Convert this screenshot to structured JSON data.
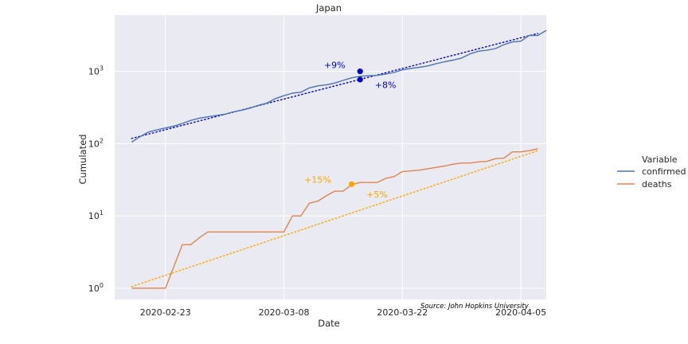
{
  "chart_data": {
    "type": "line",
    "title": "Japan",
    "xlabel": "Date",
    "ylabel": "Cumulated",
    "yscale": "log",
    "ylim": [
      0.7,
      6000
    ],
    "xlim": [
      "2020-02-17",
      "2020-04-08"
    ],
    "x_ticks": [
      "2020-02-23",
      "2020-03-08",
      "2020-03-22",
      "2020-04-05"
    ],
    "y_ticks": [
      {
        "value": 1,
        "base": "10",
        "exp": "0"
      },
      {
        "value": 10,
        "base": "10",
        "exp": "1"
      },
      {
        "value": 100,
        "base": "10",
        "exp": "2"
      },
      {
        "value": 1000,
        "base": "10",
        "exp": "3"
      }
    ],
    "grid": true,
    "source": "Source: John Hopkins University",
    "legend": {
      "title": "Variable",
      "position": "right",
      "entries": [
        {
          "label": "confirmed",
          "color": "#4c72b0"
        },
        {
          "label": "deaths",
          "color": "#dd8452"
        }
      ]
    },
    "series": [
      {
        "name": "confirmed",
        "color": "#4c72b0",
        "points": [
          [
            "2020-02-19",
            105
          ],
          [
            "2020-02-20",
            125
          ],
          [
            "2020-02-21",
            145
          ],
          [
            "2020-02-22",
            155
          ],
          [
            "2020-02-23",
            165
          ],
          [
            "2020-02-24",
            175
          ],
          [
            "2020-02-25",
            190
          ],
          [
            "2020-02-26",
            210
          ],
          [
            "2020-02-27",
            225
          ],
          [
            "2020-02-28",
            235
          ],
          [
            "2020-02-29",
            245
          ],
          [
            "2020-03-01",
            255
          ],
          [
            "2020-03-02",
            275
          ],
          [
            "2020-03-03",
            290
          ],
          [
            "2020-03-04",
            310
          ],
          [
            "2020-03-05",
            340
          ],
          [
            "2020-03-06",
            365
          ],
          [
            "2020-03-07",
            420
          ],
          [
            "2020-03-08",
            460
          ],
          [
            "2020-03-09",
            500
          ],
          [
            "2020-03-10",
            515
          ],
          [
            "2020-03-11",
            590
          ],
          [
            "2020-03-12",
            630
          ],
          [
            "2020-03-13",
            650
          ],
          [
            "2020-03-14",
            690
          ],
          [
            "2020-03-15",
            750
          ],
          [
            "2020-03-16",
            815
          ],
          [
            "2020-03-17",
            855
          ],
          [
            "2020-03-18",
            870
          ],
          [
            "2020-03-19",
            880
          ],
          [
            "2020-03-20",
            915
          ],
          [
            "2020-03-21",
            965
          ],
          [
            "2020-03-22",
            1050
          ],
          [
            "2020-03-23",
            1100
          ],
          [
            "2020-03-24",
            1140
          ],
          [
            "2020-03-25",
            1190
          ],
          [
            "2020-03-26",
            1280
          ],
          [
            "2020-03-27",
            1360
          ],
          [
            "2020-03-28",
            1430
          ],
          [
            "2020-03-29",
            1530
          ],
          [
            "2020-03-30",
            1750
          ],
          [
            "2020-03-31",
            1900
          ],
          [
            "2020-04-01",
            1960
          ],
          [
            "2020-04-02",
            2070
          ],
          [
            "2020-04-03",
            2350
          ],
          [
            "2020-04-04",
            2550
          ],
          [
            "2020-04-05",
            2620
          ],
          [
            "2020-04-06",
            3150
          ],
          [
            "2020-04-07",
            3140
          ],
          [
            "2020-04-08",
            3700
          ]
        ]
      },
      {
        "name": "deaths",
        "color": "#dd8452",
        "points": [
          [
            "2020-02-19",
            1
          ],
          [
            "2020-02-20",
            1
          ],
          [
            "2020-02-21",
            1
          ],
          [
            "2020-02-22",
            1
          ],
          [
            "2020-02-23",
            1
          ],
          [
            "2020-02-24",
            2
          ],
          [
            "2020-02-25",
            4
          ],
          [
            "2020-02-26",
            4
          ],
          [
            "2020-02-27",
            5
          ],
          [
            "2020-02-28",
            6
          ],
          [
            "2020-02-29",
            6
          ],
          [
            "2020-03-01",
            6
          ],
          [
            "2020-03-02",
            6
          ],
          [
            "2020-03-03",
            6
          ],
          [
            "2020-03-04",
            6
          ],
          [
            "2020-03-05",
            6
          ],
          [
            "2020-03-06",
            6
          ],
          [
            "2020-03-07",
            6
          ],
          [
            "2020-03-08",
            6
          ],
          [
            "2020-03-09",
            10
          ],
          [
            "2020-03-10",
            10
          ],
          [
            "2020-03-11",
            15
          ],
          [
            "2020-03-12",
            16
          ],
          [
            "2020-03-13",
            19
          ],
          [
            "2020-03-14",
            22
          ],
          [
            "2020-03-15",
            22
          ],
          [
            "2020-03-16",
            27
          ],
          [
            "2020-03-17",
            29
          ],
          [
            "2020-03-18",
            29
          ],
          [
            "2020-03-19",
            29
          ],
          [
            "2020-03-20",
            33
          ],
          [
            "2020-03-21",
            35
          ],
          [
            "2020-03-22",
            41
          ],
          [
            "2020-03-23",
            42
          ],
          [
            "2020-03-24",
            43
          ],
          [
            "2020-03-25",
            45
          ],
          [
            "2020-03-26",
            47
          ],
          [
            "2020-03-27",
            49
          ],
          [
            "2020-03-28",
            52
          ],
          [
            "2020-03-29",
            54
          ],
          [
            "2020-03-30",
            54
          ],
          [
            "2020-03-31",
            56
          ],
          [
            "2020-04-01",
            57
          ],
          [
            "2020-04-02",
            62
          ],
          [
            "2020-04-03",
            63
          ],
          [
            "2020-04-04",
            77
          ],
          [
            "2020-04-05",
            77
          ],
          [
            "2020-04-06",
            80
          ],
          [
            "2020-04-07",
            85
          ]
        ]
      }
    ],
    "trendlines": [
      {
        "series": "confirmed",
        "color": "#0000cc",
        "points": [
          [
            "2020-02-19",
            118
          ],
          [
            "2020-04-07",
            3350
          ]
        ]
      },
      {
        "series": "deaths",
        "color": "#ffa500",
        "points": [
          [
            "2020-02-19",
            1.05
          ],
          [
            "2020-04-07",
            80
          ]
        ]
      }
    ],
    "markers": [
      {
        "x": "2020-03-17",
        "y": 1000,
        "color": "#0000cc"
      },
      {
        "x": "2020-03-17",
        "y": 770,
        "color": "#0000cc"
      },
      {
        "x": "2020-03-16",
        "y": 27.5,
        "color": "#ffa500"
      }
    ],
    "annotations": [
      {
        "text": "+9%",
        "x": "2020-03-14",
        "y": 1230,
        "color": "#0000cc"
      },
      {
        "text": "+8%",
        "x": "2020-03-20",
        "y": 650,
        "color": "#0000cc"
      },
      {
        "text": "+15%",
        "x": "2020-03-12",
        "y": 32,
        "color": "#ffa500"
      },
      {
        "text": "+5%",
        "x": "2020-03-19",
        "y": 20,
        "color": "#ffa500"
      }
    ]
  }
}
